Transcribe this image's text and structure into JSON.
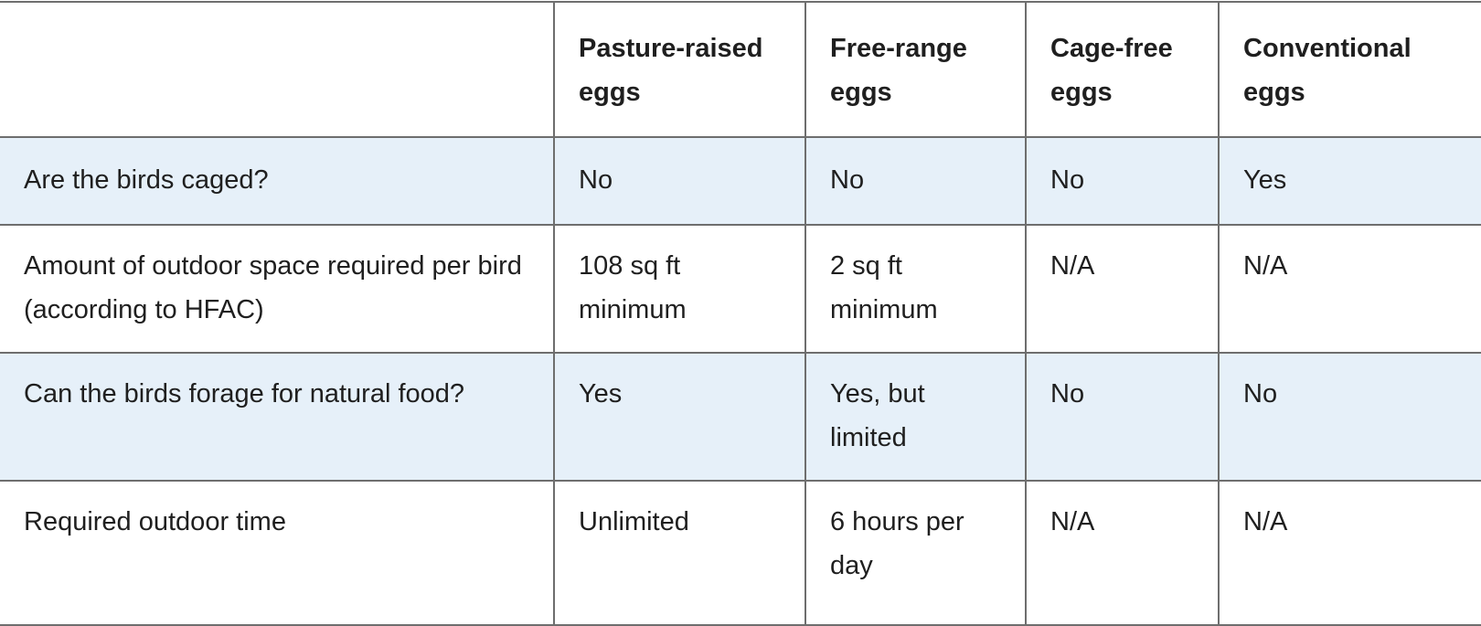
{
  "table": {
    "headers": [
      "",
      "Pasture-raised eggs",
      "Free-range eggs",
      "Cage-free eggs",
      "Conventional eggs"
    ],
    "rows": [
      {
        "label": "Are the birds caged?",
        "values": [
          "No",
          "No",
          "No",
          "Yes"
        ]
      },
      {
        "label": "Amount of outdoor space required per bird (according to HFAC)",
        "values": [
          "108 sq ft minimum",
          "2 sq ft minimum",
          "N/A",
          "N/A"
        ]
      },
      {
        "label": "Can the birds forage for natural food?",
        "values": [
          "Yes",
          "Yes, but limited",
          "No",
          "No"
        ]
      },
      {
        "label": "Required outdoor time",
        "values": [
          "Unlimited",
          "6 hours per day",
          "N/A",
          "N/A"
        ]
      }
    ],
    "shading": {
      "alt_row_color": "#e6f0f9",
      "border_color": "#6e6e6e"
    }
  }
}
